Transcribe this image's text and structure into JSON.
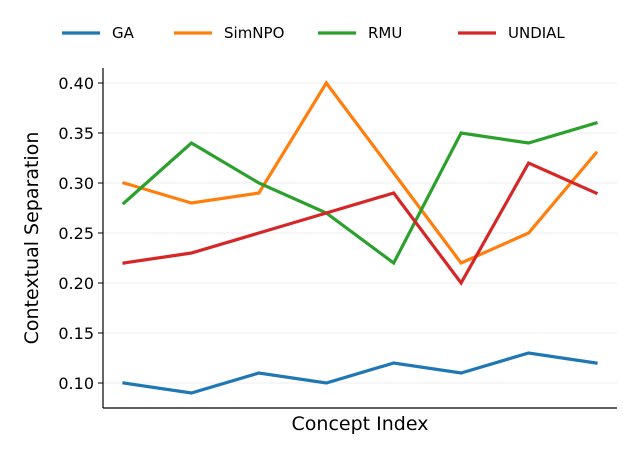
{
  "chart_data": {
    "type": "line",
    "xlabel": "Concept Index",
    "ylabel": "Contextual Separation",
    "ylim": [
      0.075,
      0.415
    ],
    "yticks": [
      "0.10",
      "0.15",
      "0.20",
      "0.25",
      "0.30",
      "0.35",
      "0.40"
    ],
    "x": [
      1,
      2,
      3,
      4,
      5,
      6,
      7,
      8
    ],
    "grid": "horizontal",
    "legend_position": "top",
    "series": [
      {
        "name": "GA",
        "color": "#1f77b4",
        "values": [
          0.1,
          0.09,
          0.11,
          0.1,
          0.12,
          0.11,
          0.13,
          0.12
        ]
      },
      {
        "name": "SimNPO",
        "color": "#ff7f0e",
        "values": [
          0.3,
          0.28,
          0.29,
          0.4,
          0.31,
          0.22,
          0.25,
          0.33
        ]
      },
      {
        "name": "RMU",
        "color": "#2ca02c",
        "values": [
          0.28,
          0.34,
          0.3,
          0.27,
          0.22,
          0.35,
          0.34,
          0.36
        ]
      },
      {
        "name": "UNDIAL",
        "color": "#d62728",
        "values": [
          0.22,
          0.23,
          0.25,
          0.27,
          0.29,
          0.2,
          0.32,
          0.29
        ]
      }
    ]
  }
}
